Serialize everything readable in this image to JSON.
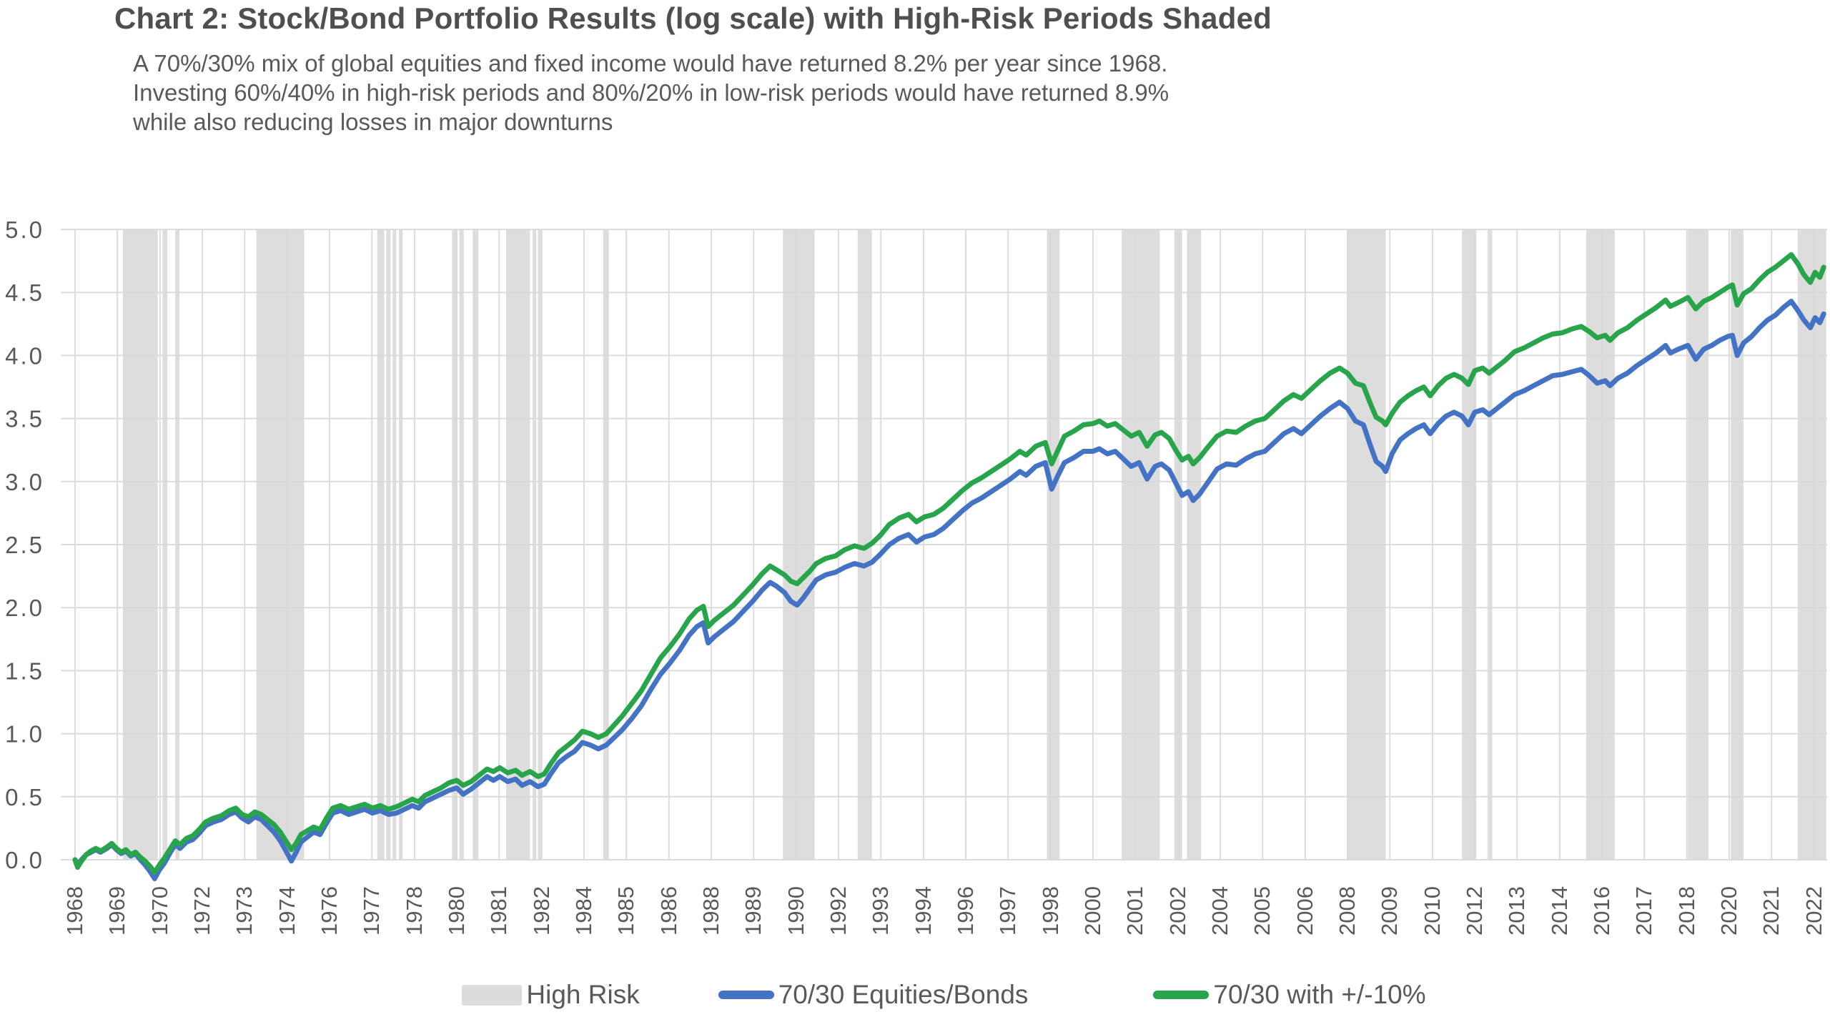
{
  "title": "Chart 2: Stock/Bond Portfolio Results (log scale) with High-Risk Periods Shaded",
  "subtitle_lines": [
    "A 70%/30% mix of global equities and fixed income would have returned 8.2% per year since 1968.",
    "Investing 60%/40% in high-risk periods and 80%/20% in low-risk periods would have returned 8.9%",
    "while also reducing losses in major downturns"
  ],
  "legend": {
    "items": [
      {
        "label": "High Risk",
        "swatch": "rect",
        "color": "#DCDCDC"
      },
      {
        "label": "70/30 Equities/Bonds",
        "swatch": "line",
        "color": "#4472C4"
      },
      {
        "label": "70/30 with +/-10%",
        "swatch": "line",
        "color": "#28A54B"
      }
    ]
  },
  "colors": {
    "band": "#DDDDDD",
    "gridline": "#D9D9D9",
    "axis_text": "#595959",
    "blue_series": "#4472C4",
    "green_series": "#28A54B"
  },
  "chart_data": {
    "type": "line",
    "title": "Chart 2: Stock/Bond Portfolio Results (log scale) with High-Risk Periods Shaded",
    "xlabel": "",
    "ylabel": "",
    "x_unit": "year",
    "grid": true,
    "legend_position": "bottom",
    "ylim": [
      0,
      5
    ],
    "y_ticks": [
      0.0,
      0.5,
      1.0,
      1.5,
      2.0,
      2.5,
      3.0,
      3.5,
      4.0,
      4.5,
      5.0
    ],
    "x_ticks": [
      {
        "label": "1968",
        "year": 1968.0
      },
      {
        "label": "1969",
        "year": 1969.33
      },
      {
        "label": "1970",
        "year": 1970.67
      },
      {
        "label": "1972",
        "year": 1972.0
      },
      {
        "label": "1973",
        "year": 1973.33
      },
      {
        "label": "1974",
        "year": 1974.67
      },
      {
        "label": "1976",
        "year": 1976.0
      },
      {
        "label": "1977",
        "year": 1977.33
      },
      {
        "label": "1978",
        "year": 1978.67
      },
      {
        "label": "1980",
        "year": 1980.0
      },
      {
        "label": "1981",
        "year": 1981.33
      },
      {
        "label": "1982",
        "year": 1982.67
      },
      {
        "label": "1984",
        "year": 1984.0
      },
      {
        "label": "1985",
        "year": 1985.33
      },
      {
        "label": "1986",
        "year": 1986.67
      },
      {
        "label": "1988",
        "year": 1988.0
      },
      {
        "label": "1989",
        "year": 1989.33
      },
      {
        "label": "1990",
        "year": 1990.67
      },
      {
        "label": "1992",
        "year": 1992.0
      },
      {
        "label": "1993",
        "year": 1993.33
      },
      {
        "label": "1994",
        "year": 1994.67
      },
      {
        "label": "1996",
        "year": 1996.0
      },
      {
        "label": "1997",
        "year": 1997.33
      },
      {
        "label": "1998",
        "year": 1998.67
      },
      {
        "label": "2000",
        "year": 2000.0
      },
      {
        "label": "2001",
        "year": 2001.33
      },
      {
        "label": "2002",
        "year": 2002.67
      },
      {
        "label": "2004",
        "year": 2004.0
      },
      {
        "label": "2005",
        "year": 2005.33
      },
      {
        "label": "2006",
        "year": 2006.67
      },
      {
        "label": "2008",
        "year": 2008.0
      },
      {
        "label": "2009",
        "year": 2009.33
      },
      {
        "label": "2010",
        "year": 2010.67
      },
      {
        "label": "2012",
        "year": 2012.0
      },
      {
        "label": "2013",
        "year": 2013.33
      },
      {
        "label": "2014",
        "year": 2014.67
      },
      {
        "label": "2016",
        "year": 2016.0
      },
      {
        "label": "2017",
        "year": 2017.33
      },
      {
        "label": "2018",
        "year": 2018.67
      },
      {
        "label": "2020",
        "year": 2020.0
      },
      {
        "label": "2021",
        "year": 2021.33
      },
      {
        "label": "2022",
        "year": 2022.67
      }
    ],
    "high_risk_periods": [
      [
        1969.5,
        1970.6
      ],
      [
        1970.75,
        1970.9
      ],
      [
        1971.15,
        1971.28
      ],
      [
        1973.7,
        1975.2
      ],
      [
        1977.5,
        1977.72
      ],
      [
        1977.78,
        1977.92
      ],
      [
        1977.98,
        1978.1
      ],
      [
        1978.18,
        1978.3
      ],
      [
        1979.85,
        1980.0
      ],
      [
        1980.08,
        1980.22
      ],
      [
        1980.5,
        1980.68
      ],
      [
        1981.55,
        1982.3
      ],
      [
        1982.38,
        1982.5
      ],
      [
        1982.55,
        1982.65
      ],
      [
        1984.6,
        1984.78
      ],
      [
        1990.25,
        1991.25
      ],
      [
        1992.6,
        1993.05
      ],
      [
        1998.55,
        1998.95
      ],
      [
        2000.9,
        2002.1
      ],
      [
        2002.55,
        2002.8
      ],
      [
        2002.95,
        2003.4
      ],
      [
        2008.0,
        2009.2
      ],
      [
        2011.6,
        2012.05
      ],
      [
        2012.4,
        2012.55
      ],
      [
        2015.5,
        2016.4
      ],
      [
        2018.7,
        2019.35
      ],
      [
        2020.05,
        2020.45
      ],
      [
        2022.15,
        2023.05
      ]
    ],
    "series": [
      {
        "name": "70/30 Equities/Bonds",
        "color": "#4472C4",
        "value_index": 1
      },
      {
        "name": "70/30 with +/-10%",
        "color": "#28A54B",
        "value_index": 2
      }
    ],
    "points_format": [
      "year",
      "blue_70_30",
      "green_70_30_plus_minus_10"
    ],
    "points": [
      [
        1968.0,
        0.0,
        0.0
      ],
      [
        1968.08,
        -0.04,
        -0.06
      ],
      [
        1968.2,
        0.0,
        -0.01
      ],
      [
        1968.35,
        0.04,
        0.04
      ],
      [
        1968.5,
        0.06,
        0.07
      ],
      [
        1968.65,
        0.08,
        0.09
      ],
      [
        1968.8,
        0.06,
        0.07
      ],
      [
        1969.0,
        0.09,
        0.1
      ],
      [
        1969.15,
        0.12,
        0.13
      ],
      [
        1969.3,
        0.08,
        0.09
      ],
      [
        1969.45,
        0.05,
        0.06
      ],
      [
        1969.6,
        0.07,
        0.08
      ],
      [
        1969.75,
        0.03,
        0.04
      ],
      [
        1969.9,
        0.05,
        0.06
      ],
      [
        1970.05,
        0.0,
        0.02
      ],
      [
        1970.2,
        -0.04,
        -0.01
      ],
      [
        1970.35,
        -0.09,
        -0.05
      ],
      [
        1970.5,
        -0.15,
        -0.1
      ],
      [
        1970.65,
        -0.08,
        -0.04
      ],
      [
        1970.8,
        -0.03,
        0.01
      ],
      [
        1971.0,
        0.06,
        0.09
      ],
      [
        1971.15,
        0.12,
        0.15
      ],
      [
        1971.3,
        0.09,
        0.12
      ],
      [
        1971.5,
        0.14,
        0.17
      ],
      [
        1971.7,
        0.16,
        0.19
      ],
      [
        1971.9,
        0.21,
        0.24
      ],
      [
        1972.1,
        0.27,
        0.3
      ],
      [
        1972.35,
        0.3,
        0.33
      ],
      [
        1972.6,
        0.32,
        0.35
      ],
      [
        1972.85,
        0.36,
        0.39
      ],
      [
        1973.05,
        0.38,
        0.41
      ],
      [
        1973.25,
        0.33,
        0.36
      ],
      [
        1973.45,
        0.3,
        0.34
      ],
      [
        1973.65,
        0.34,
        0.38
      ],
      [
        1973.85,
        0.32,
        0.36
      ],
      [
        1974.05,
        0.27,
        0.32
      ],
      [
        1974.25,
        0.22,
        0.28
      ],
      [
        1974.45,
        0.15,
        0.22
      ],
      [
        1974.65,
        0.06,
        0.14
      ],
      [
        1974.8,
        -0.01,
        0.08
      ],
      [
        1974.95,
        0.06,
        0.13
      ],
      [
        1975.1,
        0.14,
        0.2
      ],
      [
        1975.3,
        0.18,
        0.23
      ],
      [
        1975.5,
        0.22,
        0.26
      ],
      [
        1975.7,
        0.2,
        0.24
      ],
      [
        1975.9,
        0.29,
        0.33
      ],
      [
        1976.1,
        0.37,
        0.41
      ],
      [
        1976.35,
        0.39,
        0.43
      ],
      [
        1976.6,
        0.36,
        0.4
      ],
      [
        1976.85,
        0.38,
        0.42
      ],
      [
        1977.1,
        0.4,
        0.44
      ],
      [
        1977.35,
        0.37,
        0.41
      ],
      [
        1977.6,
        0.39,
        0.43
      ],
      [
        1977.85,
        0.36,
        0.4
      ],
      [
        1978.1,
        0.37,
        0.42
      ],
      [
        1978.35,
        0.4,
        0.45
      ],
      [
        1978.6,
        0.43,
        0.48
      ],
      [
        1978.8,
        0.41,
        0.46
      ],
      [
        1979.0,
        0.46,
        0.51
      ],
      [
        1979.25,
        0.49,
        0.54
      ],
      [
        1979.5,
        0.52,
        0.57
      ],
      [
        1979.75,
        0.55,
        0.61
      ],
      [
        1980.0,
        0.57,
        0.63
      ],
      [
        1980.2,
        0.52,
        0.59
      ],
      [
        1980.45,
        0.56,
        0.62
      ],
      [
        1980.7,
        0.61,
        0.67
      ],
      [
        1980.95,
        0.66,
        0.72
      ],
      [
        1981.15,
        0.63,
        0.7
      ],
      [
        1981.35,
        0.66,
        0.73
      ],
      [
        1981.6,
        0.62,
        0.69
      ],
      [
        1981.85,
        0.64,
        0.71
      ],
      [
        1982.05,
        0.59,
        0.67
      ],
      [
        1982.3,
        0.62,
        0.7
      ],
      [
        1982.55,
        0.58,
        0.66
      ],
      [
        1982.75,
        0.6,
        0.68
      ],
      [
        1982.95,
        0.68,
        0.76
      ],
      [
        1983.2,
        0.77,
        0.85
      ],
      [
        1983.45,
        0.82,
        0.9
      ],
      [
        1983.7,
        0.86,
        0.95
      ],
      [
        1983.95,
        0.93,
        1.02
      ],
      [
        1984.2,
        0.91,
        1.0
      ],
      [
        1984.45,
        0.88,
        0.97
      ],
      [
        1984.7,
        0.91,
        1.0
      ],
      [
        1984.95,
        0.97,
        1.07
      ],
      [
        1985.2,
        1.03,
        1.14
      ],
      [
        1985.5,
        1.12,
        1.24
      ],
      [
        1985.8,
        1.22,
        1.34
      ],
      [
        1986.1,
        1.35,
        1.47
      ],
      [
        1986.4,
        1.47,
        1.6
      ],
      [
        1986.7,
        1.56,
        1.69
      ],
      [
        1987.0,
        1.66,
        1.79
      ],
      [
        1987.3,
        1.78,
        1.91
      ],
      [
        1987.55,
        1.85,
        1.98
      ],
      [
        1987.75,
        1.88,
        2.01
      ],
      [
        1987.9,
        1.72,
        1.85
      ],
      [
        1988.1,
        1.77,
        1.9
      ],
      [
        1988.4,
        1.83,
        1.96
      ],
      [
        1988.7,
        1.89,
        2.02
      ],
      [
        1989.0,
        1.97,
        2.1
      ],
      [
        1989.3,
        2.05,
        2.18
      ],
      [
        1989.6,
        2.14,
        2.27
      ],
      [
        1989.85,
        2.2,
        2.33
      ],
      [
        1990.05,
        2.17,
        2.3
      ],
      [
        1990.3,
        2.12,
        2.26
      ],
      [
        1990.5,
        2.05,
        2.21
      ],
      [
        1990.7,
        2.02,
        2.19
      ],
      [
        1990.9,
        2.08,
        2.24
      ],
      [
        1991.1,
        2.15,
        2.29
      ],
      [
        1991.3,
        2.22,
        2.35
      ],
      [
        1991.6,
        2.26,
        2.39
      ],
      [
        1991.9,
        2.28,
        2.41
      ],
      [
        1992.2,
        2.32,
        2.46
      ],
      [
        1992.5,
        2.35,
        2.49
      ],
      [
        1992.8,
        2.33,
        2.47
      ],
      [
        1993.05,
        2.36,
        2.51
      ],
      [
        1993.3,
        2.42,
        2.57
      ],
      [
        1993.6,
        2.5,
        2.66
      ],
      [
        1993.9,
        2.55,
        2.71
      ],
      [
        1994.2,
        2.58,
        2.74
      ],
      [
        1994.45,
        2.52,
        2.68
      ],
      [
        1994.7,
        2.56,
        2.72
      ],
      [
        1995.0,
        2.58,
        2.74
      ],
      [
        1995.3,
        2.63,
        2.79
      ],
      [
        1995.6,
        2.7,
        2.86
      ],
      [
        1995.9,
        2.77,
        2.93
      ],
      [
        1996.2,
        2.83,
        2.99
      ],
      [
        1996.5,
        2.87,
        3.03
      ],
      [
        1996.8,
        2.92,
        3.08
      ],
      [
        1997.1,
        2.97,
        3.13
      ],
      [
        1997.4,
        3.02,
        3.18
      ],
      [
        1997.7,
        3.08,
        3.24
      ],
      [
        1997.9,
        3.05,
        3.21
      ],
      [
        1998.2,
        3.12,
        3.28
      ],
      [
        1998.5,
        3.15,
        3.31
      ],
      [
        1998.7,
        2.94,
        3.14
      ],
      [
        1998.9,
        3.05,
        3.25
      ],
      [
        1999.1,
        3.15,
        3.36
      ],
      [
        1999.4,
        3.19,
        3.4
      ],
      [
        1999.7,
        3.24,
        3.45
      ],
      [
        2000.0,
        3.24,
        3.46
      ],
      [
        2000.2,
        3.26,
        3.48
      ],
      [
        2000.45,
        3.22,
        3.44
      ],
      [
        2000.7,
        3.24,
        3.46
      ],
      [
        2000.95,
        3.18,
        3.41
      ],
      [
        2001.2,
        3.12,
        3.36
      ],
      [
        2001.45,
        3.15,
        3.39
      ],
      [
        2001.7,
        3.02,
        3.28
      ],
      [
        2001.95,
        3.12,
        3.37
      ],
      [
        2002.15,
        3.14,
        3.39
      ],
      [
        2002.4,
        3.09,
        3.34
      ],
      [
        2002.6,
        2.99,
        3.25
      ],
      [
        2002.8,
        2.89,
        3.17
      ],
      [
        2003.0,
        2.92,
        3.2
      ],
      [
        2003.15,
        2.85,
        3.14
      ],
      [
        2003.35,
        2.9,
        3.19
      ],
      [
        2003.6,
        2.99,
        3.27
      ],
      [
        2003.9,
        3.1,
        3.36
      ],
      [
        2004.2,
        3.14,
        3.4
      ],
      [
        2004.5,
        3.13,
        3.39
      ],
      [
        2004.8,
        3.18,
        3.44
      ],
      [
        2005.1,
        3.22,
        3.48
      ],
      [
        2005.4,
        3.24,
        3.5
      ],
      [
        2005.7,
        3.31,
        3.57
      ],
      [
        2006.0,
        3.38,
        3.64
      ],
      [
        2006.3,
        3.42,
        3.69
      ],
      [
        2006.55,
        3.38,
        3.66
      ],
      [
        2006.85,
        3.45,
        3.73
      ],
      [
        2007.15,
        3.52,
        3.8
      ],
      [
        2007.45,
        3.58,
        3.86
      ],
      [
        2007.75,
        3.63,
        3.9
      ],
      [
        2008.0,
        3.58,
        3.86
      ],
      [
        2008.25,
        3.48,
        3.78
      ],
      [
        2008.5,
        3.45,
        3.76
      ],
      [
        2008.7,
        3.3,
        3.63
      ],
      [
        2008.9,
        3.16,
        3.51
      ],
      [
        2009.1,
        3.12,
        3.48
      ],
      [
        2009.2,
        3.08,
        3.45
      ],
      [
        2009.4,
        3.22,
        3.54
      ],
      [
        2009.65,
        3.33,
        3.63
      ],
      [
        2009.9,
        3.38,
        3.68
      ],
      [
        2010.15,
        3.42,
        3.72
      ],
      [
        2010.4,
        3.45,
        3.75
      ],
      [
        2010.6,
        3.38,
        3.68
      ],
      [
        2010.85,
        3.46,
        3.76
      ],
      [
        2011.1,
        3.52,
        3.82
      ],
      [
        2011.35,
        3.55,
        3.85
      ],
      [
        2011.6,
        3.52,
        3.82
      ],
      [
        2011.8,
        3.45,
        3.77
      ],
      [
        2012.0,
        3.55,
        3.88
      ],
      [
        2012.25,
        3.57,
        3.9
      ],
      [
        2012.45,
        3.53,
        3.86
      ],
      [
        2012.7,
        3.58,
        3.91
      ],
      [
        2012.95,
        3.63,
        3.96
      ],
      [
        2013.25,
        3.69,
        4.03
      ],
      [
        2013.55,
        3.72,
        4.06
      ],
      [
        2013.85,
        3.76,
        4.1
      ],
      [
        2014.15,
        3.8,
        4.14
      ],
      [
        2014.45,
        3.84,
        4.17
      ],
      [
        2014.75,
        3.85,
        4.18
      ],
      [
        2015.05,
        3.87,
        4.21
      ],
      [
        2015.35,
        3.89,
        4.23
      ],
      [
        2015.6,
        3.84,
        4.19
      ],
      [
        2015.85,
        3.78,
        4.14
      ],
      [
        2016.1,
        3.8,
        4.16
      ],
      [
        2016.25,
        3.76,
        4.12
      ],
      [
        2016.5,
        3.82,
        4.18
      ],
      [
        2016.8,
        3.86,
        4.22
      ],
      [
        2017.1,
        3.92,
        4.28
      ],
      [
        2017.4,
        3.97,
        4.33
      ],
      [
        2017.7,
        4.02,
        4.38
      ],
      [
        2018.0,
        4.08,
        4.44
      ],
      [
        2018.15,
        4.02,
        4.39
      ],
      [
        2018.4,
        4.05,
        4.42
      ],
      [
        2018.7,
        4.08,
        4.46
      ],
      [
        2018.95,
        3.97,
        4.37
      ],
      [
        2019.2,
        4.05,
        4.43
      ],
      [
        2019.45,
        4.08,
        4.46
      ],
      [
        2019.7,
        4.12,
        4.5
      ],
      [
        2019.95,
        4.15,
        4.54
      ],
      [
        2020.1,
        4.16,
        4.56
      ],
      [
        2020.25,
        4.0,
        4.4
      ],
      [
        2020.45,
        4.1,
        4.49
      ],
      [
        2020.7,
        4.15,
        4.53
      ],
      [
        2020.95,
        4.22,
        4.6
      ],
      [
        2021.2,
        4.28,
        4.66
      ],
      [
        2021.45,
        4.32,
        4.7
      ],
      [
        2021.7,
        4.38,
        4.75
      ],
      [
        2021.95,
        4.43,
        4.8
      ],
      [
        2022.15,
        4.36,
        4.73
      ],
      [
        2022.35,
        4.28,
        4.64
      ],
      [
        2022.55,
        4.22,
        4.58
      ],
      [
        2022.7,
        4.3,
        4.66
      ],
      [
        2022.85,
        4.26,
        4.62
      ],
      [
        2022.97,
        4.33,
        4.7
      ]
    ]
  }
}
